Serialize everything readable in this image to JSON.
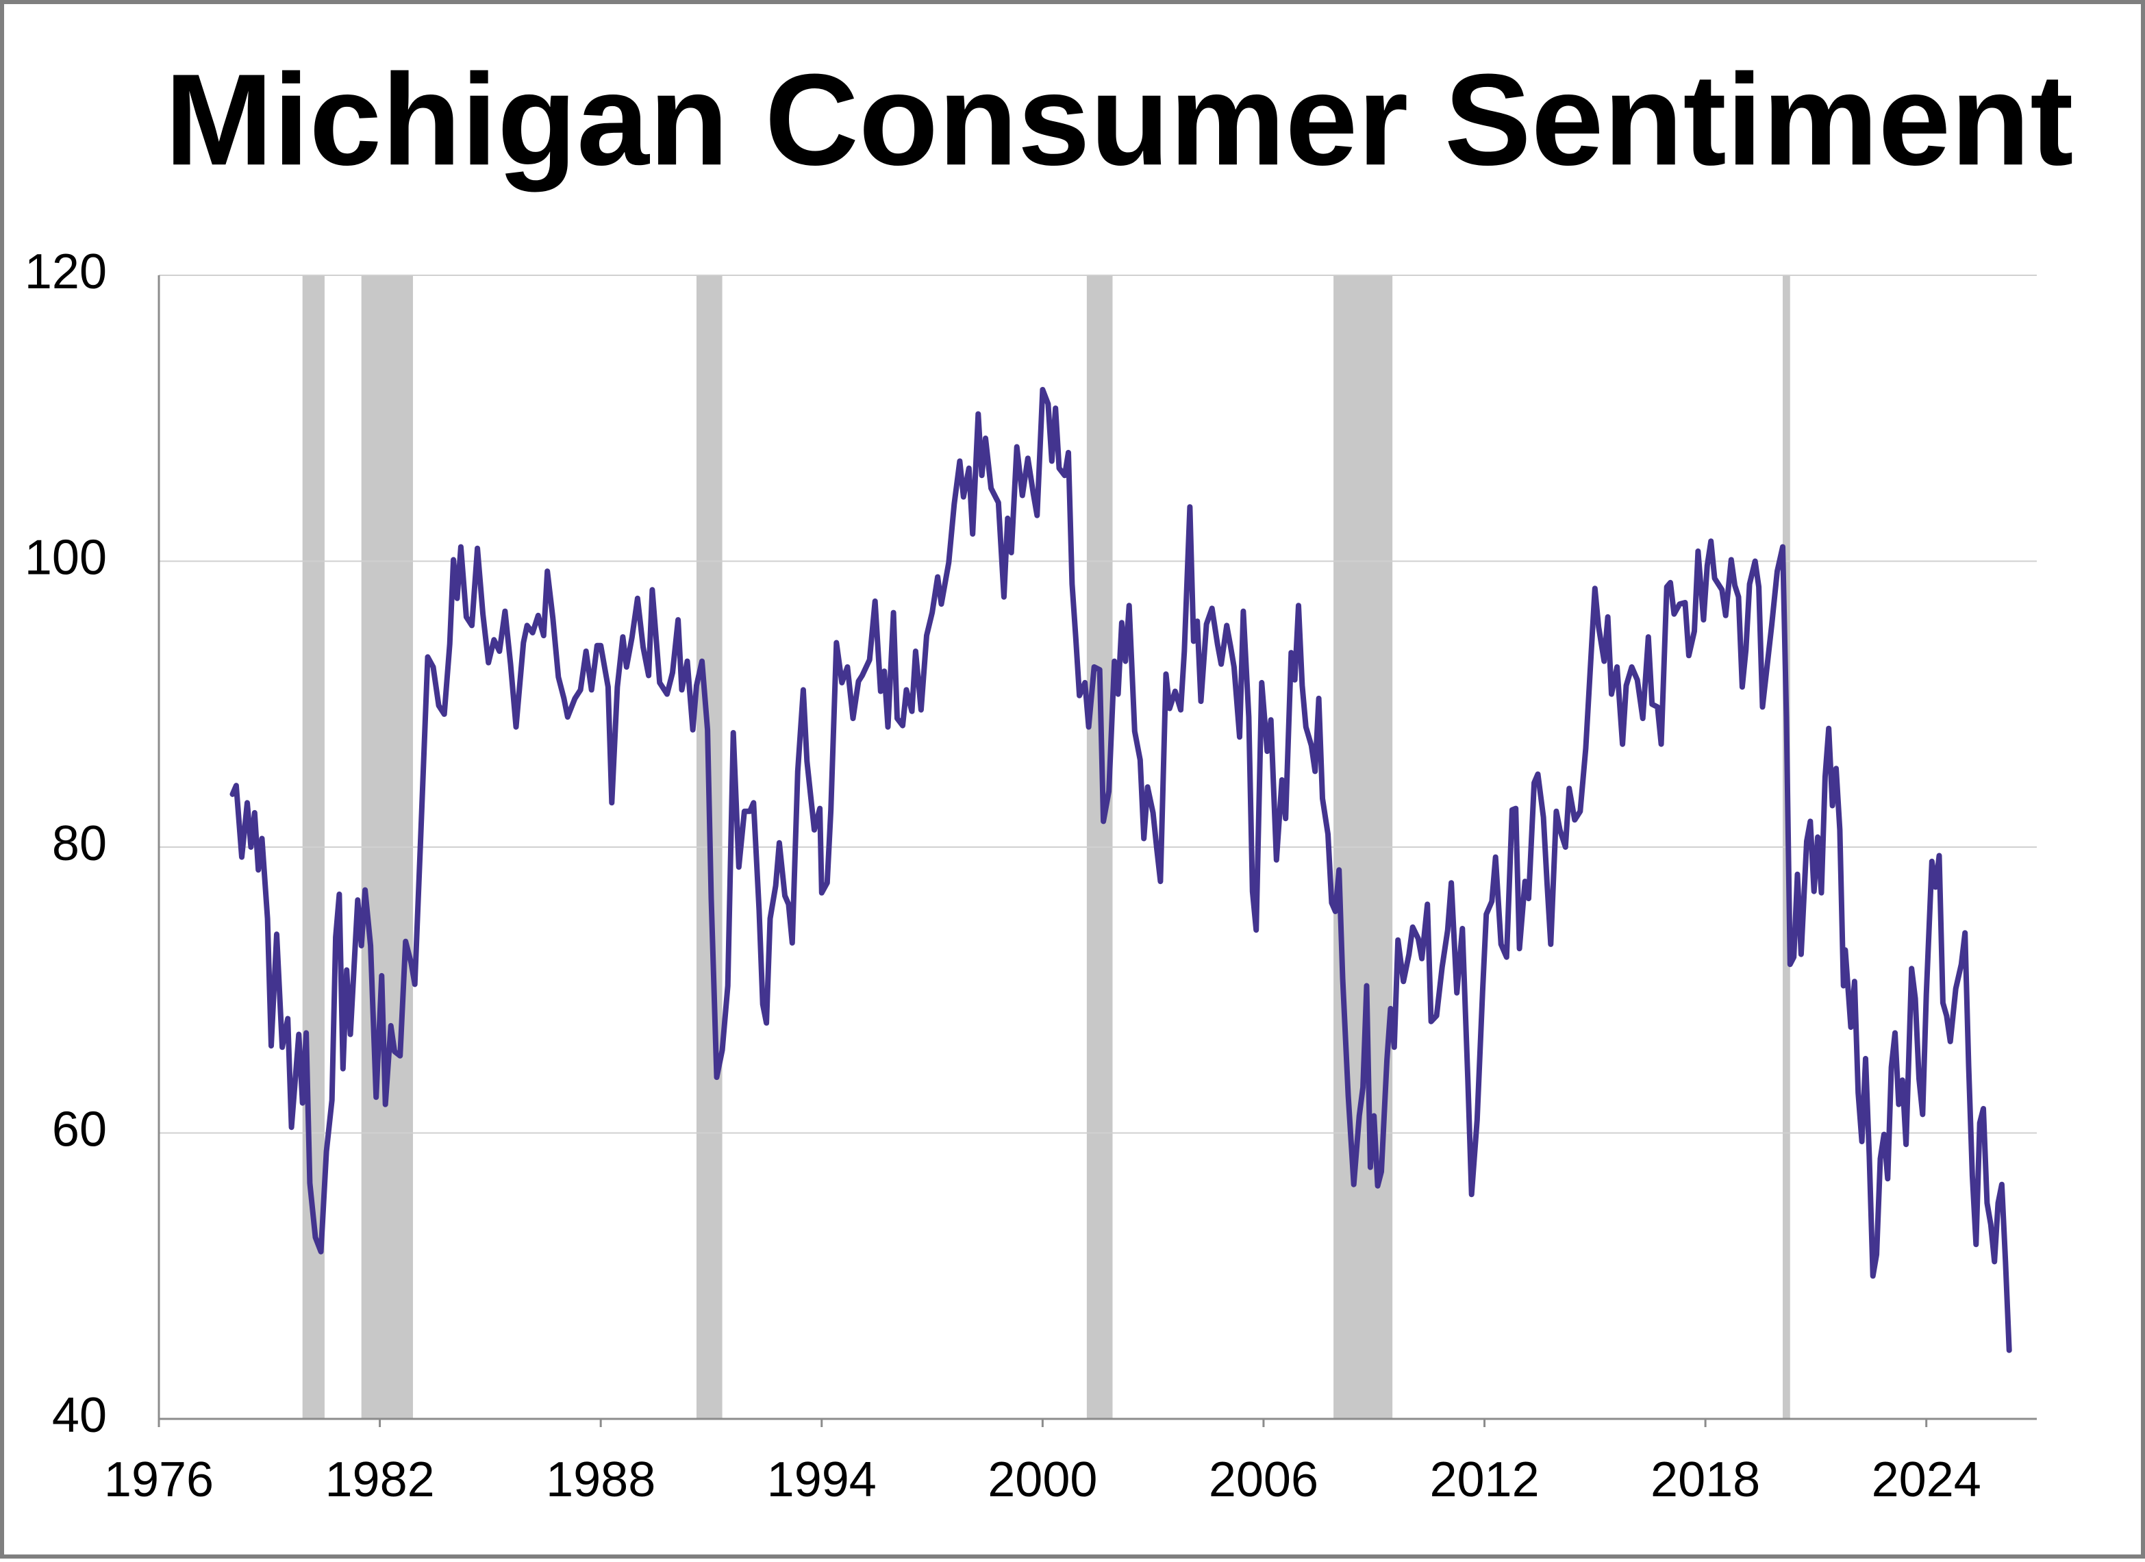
{
  "chart_data": {
    "type": "line",
    "title": "Michigan Consumer Sentiment",
    "xlim": [
      1976,
      2027
    ],
    "xticks": [
      1976,
      1982,
      1988,
      1994,
      2000,
      2006,
      2012,
      2018,
      2024
    ],
    "ylim": [
      40,
      120
    ],
    "yticks": [
      40,
      60,
      80,
      100,
      120
    ],
    "grid": true,
    "color": "#43348f",
    "shade_color": "#c8c8c8",
    "recessions": [
      [
        1979.9,
        1980.5
      ],
      [
        1981.5,
        1982.9
      ],
      [
        1990.6,
        1991.3
      ],
      [
        2001.2,
        2001.9
      ],
      [
        2007.9,
        2009.5
      ],
      [
        2020.1,
        2020.3
      ]
    ],
    "x": [
      1978.0,
      1978.1,
      1978.25,
      1978.4,
      1978.5,
      1978.6,
      1978.7,
      1978.8,
      1978.95,
      1979.05,
      1979.2,
      1979.35,
      1979.5,
      1979.6,
      1979.8,
      1979.9,
      1980.0,
      1980.1,
      1980.25,
      1980.4,
      1980.55,
      1980.7,
      1980.8,
      1980.9,
      1981.0,
      1981.1,
      1981.2,
      1981.4,
      1981.5,
      1981.6,
      1981.75,
      1981.9,
      1982.05,
      1982.15,
      1982.3,
      1982.4,
      1982.55,
      1982.7,
      1982.85,
      1982.95,
      1983.1,
      1983.3,
      1983.45,
      1983.6,
      1983.75,
      1983.9,
      1984.0,
      1984.1,
      1984.2,
      1984.35,
      1984.5,
      1984.65,
      1984.8,
      1984.95,
      1985.1,
      1985.25,
      1985.4,
      1985.55,
      1985.7,
      1985.9,
      1986.0,
      1986.15,
      1986.3,
      1986.45,
      1986.55,
      1986.7,
      1986.85,
      1987.0,
      1987.1,
      1987.3,
      1987.45,
      1987.6,
      1987.75,
      1987.9,
      1988.0,
      1988.2,
      1988.3,
      1988.45,
      1988.6,
      1988.7,
      1988.85,
      1989.0,
      1989.15,
      1989.3,
      1989.4,
      1989.6,
      1989.8,
      1989.95,
      1990.1,
      1990.2,
      1990.35,
      1990.5,
      1990.6,
      1990.75,
      1990.9,
      1991.0,
      1991.15,
      1991.3,
      1991.45,
      1991.6,
      1991.75,
      1991.9,
      1992.05,
      1992.15,
      1992.3,
      1992.4,
      1992.5,
      1992.6,
      1992.75,
      1992.85,
      1993.0,
      1993.1,
      1993.2,
      1993.35,
      1993.5,
      1993.6,
      1993.8,
      1993.95,
      1994.0,
      1994.15,
      1994.25,
      1994.4,
      1994.55,
      1994.7,
      1994.85,
      1995.0,
      1995.1,
      1995.3,
      1995.45,
      1995.6,
      1995.7,
      1995.8,
      1995.95,
      1996.05,
      1996.2,
      1996.3,
      1996.45,
      1996.55,
      1996.7,
      1996.85,
      1997.0,
      1997.15,
      1997.25,
      1997.45,
      1997.6,
      1997.75,
      1997.85,
      1998.0,
      1998.1,
      1998.25,
      1998.35,
      1998.45,
      1998.6,
      1998.8,
      1998.95,
      1999.05,
      1999.15,
      1999.3,
      1999.45,
      1999.6,
      1999.75,
      1999.85,
      2000.0,
      2000.15,
      2000.25,
      2000.35,
      2000.45,
      2000.6,
      2000.7,
      2000.8,
      2000.9,
      2001.0,
      2001.15,
      2001.25,
      2001.4,
      2001.55,
      2001.65,
      2001.8,
      2001.95,
      2002.05,
      2002.15,
      2002.25,
      2002.35,
      2002.5,
      2002.65,
      2002.75,
      2002.85,
      2003.0,
      2003.1,
      2003.2,
      2003.35,
      2003.45,
      2003.6,
      2003.75,
      2003.85,
      2004.0,
      2004.1,
      2004.2,
      2004.3,
      2004.45,
      2004.6,
      2004.75,
      2004.85,
      2005.0,
      2005.1,
      2005.2,
      2005.35,
      2005.45,
      2005.6,
      2005.7,
      2005.8,
      2005.95,
      2006.1,
      2006.2,
      2006.35,
      2006.5,
      2006.6,
      2006.75,
      2006.85,
      2006.95,
      2007.05,
      2007.15,
      2007.3,
      2007.4,
      2007.5,
      2007.6,
      2007.75,
      2007.85,
      2007.95,
      2008.05,
      2008.15,
      2008.3,
      2008.45,
      2008.6,
      2008.7,
      2008.8,
      2008.9,
      2009.0,
      2009.1,
      2009.2,
      2009.35,
      2009.45,
      2009.55,
      2009.65,
      2009.8,
      2009.95,
      2010.05,
      2010.2,
      2010.3,
      2010.45,
      2010.55,
      2010.7,
      2010.85,
      2011.0,
      2011.1,
      2011.25,
      2011.4,
      2011.55,
      2011.65,
      2011.8,
      2011.95,
      2012.05,
      2012.2,
      2012.3,
      2012.45,
      2012.6,
      2012.75,
      2012.85,
      2012.95,
      2013.1,
      2013.2,
      2013.35,
      2013.45,
      2013.6,
      2013.7,
      2013.8,
      2013.95,
      2014.05,
      2014.2,
      2014.3,
      2014.45,
      2014.6,
      2014.75,
      2014.9,
      2015.0,
      2015.1,
      2015.25,
      2015.35,
      2015.45,
      2015.6,
      2015.75,
      2015.85,
      2016.0,
      2016.15,
      2016.3,
      2016.45,
      2016.55,
      2016.7,
      2016.8,
      2016.95,
      2017.05,
      2017.15,
      2017.3,
      2017.45,
      2017.55,
      2017.7,
      2017.8,
      2017.95,
      2018.05,
      2018.15,
      2018.25,
      2018.45,
      2018.55,
      2018.7,
      2018.8,
      2018.9,
      2019.0,
      2019.1,
      2019.2,
      2019.35,
      2019.45,
      2019.55,
      2019.7,
      2019.8,
      2019.95,
      2020.1,
      2020.2,
      2020.3,
      2020.4,
      2020.5,
      2020.6,
      2020.75,
      2020.85,
      2020.95,
      2021.05,
      2021.15,
      2021.25,
      2021.35,
      2021.45,
      2021.55,
      2021.65,
      2021.75,
      2021.8,
      2021.95,
      2022.05,
      2022.15,
      2022.25,
      2022.35,
      2022.45,
      2022.55,
      2022.65,
      2022.75,
      2022.85,
      2022.95,
      2023.05,
      2023.15,
      2023.25,
      2023.35,
      2023.45,
      2023.6,
      2023.7,
      2023.8,
      2023.9,
      2024.0,
      2024.15,
      2024.25,
      2024.35,
      2024.45,
      2024.55,
      2024.65,
      2024.8,
      2024.95,
      2025.05,
      2025.15,
      2025.25,
      2025.35,
      2025.45,
      2025.55,
      2025.65,
      2025.75,
      2025.85,
      2025.95,
      2026.05,
      2026.15,
      2026.25
    ],
    "values": [
      83.7,
      84.3,
      79.3,
      83.1,
      80.0,
      82.4,
      78.4,
      80.6,
      75.0,
      66.1,
      73.9,
      66.0,
      68.0,
      60.4,
      66.9,
      62.1,
      67.0,
      56.5,
      52.7,
      51.7,
      58.7,
      62.3,
      73.7,
      76.7,
      64.5,
      71.4,
      66.9,
      76.3,
      73.1,
      77.0,
      73.1,
      62.5,
      71.0,
      62.0,
      67.5,
      65.7,
      65.4,
      73.4,
      71.9,
      70.4,
      80.0,
      93.3,
      92.6,
      89.9,
      89.3,
      94.2,
      100.1,
      97.4,
      101.0,
      96.1,
      95.5,
      100.9,
      96.3,
      92.9,
      94.5,
      93.7,
      96.5,
      92.8,
      88.4,
      94.3,
      95.5,
      95.0,
      96.2,
      94.8,
      99.3,
      96.0,
      91.9,
      90.4,
      89.1,
      90.4,
      91.0,
      93.7,
      91.0,
      94.1,
      94.1,
      91.2,
      83.1,
      91.2,
      94.7,
      92.6,
      94.7,
      97.4,
      94.0,
      92.0,
      98.0,
      91.5,
      90.7,
      92.2,
      95.9,
      91.0,
      93.0,
      88.2,
      91.3,
      93.0,
      88.2,
      76.4,
      63.9,
      65.8,
      70.3,
      88.0,
      78.6,
      82.5,
      82.5,
      83.1,
      75.6,
      69.0,
      67.7,
      75.0,
      77.3,
      80.3,
      76.6,
      76.0,
      73.3,
      85.3,
      91.0,
      86.0,
      81.2,
      82.7,
      76.8,
      77.5,
      82.6,
      94.3,
      91.5,
      92.6,
      89.0,
      91.6,
      92.0,
      93.1,
      97.2,
      90.9,
      92.3,
      88.4,
      96.4,
      89.0,
      88.5,
      91.0,
      89.5,
      93.7,
      89.6,
      94.8,
      96.4,
      98.9,
      97.0,
      99.9,
      104.0,
      107.0,
      104.5,
      106.5,
      101.9,
      110.3,
      106.0,
      108.6,
      105.1,
      104.1,
      97.5,
      103.0,
      100.6,
      108.0,
      104.6,
      107.2,
      104.7,
      103.2,
      112.0,
      111.0,
      107.0,
      110.7,
      106.5,
      106.0,
      107.6,
      98.4,
      94.7,
      90.6,
      91.5,
      88.4,
      92.6,
      92.4,
      81.8,
      83.9,
      93.0,
      90.7,
      95.7,
      93.0,
      96.9,
      88.1,
      86.1,
      80.6,
      84.2,
      82.4,
      79.9,
      77.6,
      92.1,
      89.7,
      90.9,
      89.6,
      93.7,
      103.8,
      94.4,
      95.8,
      90.2,
      95.6,
      96.7,
      94.2,
      92.8,
      95.5,
      94.1,
      92.6,
      87.7,
      96.5,
      89.1,
      76.9,
      74.2,
      91.5,
      86.7,
      88.9,
      79.1,
      84.7,
      82.0,
      93.6,
      91.7,
      96.9,
      91.3,
      88.4,
      87.1,
      85.3,
      90.4,
      83.4,
      80.9,
      76.1,
      75.5,
      78.4,
      70.8,
      62.6,
      56.4,
      61.2,
      63.2,
      70.3,
      57.6,
      61.2,
      56.3,
      57.3,
      65.1,
      68.7,
      66.0,
      73.5,
      70.6,
      72.5,
      74.4,
      73.6,
      72.2,
      76.0,
      67.8,
      68.2,
      71.6,
      74.2,
      77.5,
      69.8,
      74.3,
      63.7,
      55.7,
      60.9,
      69.9,
      75.3,
      76.2,
      79.3,
      73.2,
      72.3,
      82.6,
      82.7,
      72.9,
      77.6,
      76.4,
      84.5,
      85.1,
      82.1,
      77.5,
      73.2,
      82.5,
      81.2,
      80.0,
      84.1,
      81.9,
      82.5,
      86.9,
      93.6,
      98.1,
      95.4,
      93.0,
      96.1,
      90.7,
      92.6,
      87.2,
      91.3,
      92.6,
      91.7,
      89.0,
      94.7,
      90.0,
      89.8,
      87.2,
      98.2,
      98.5,
      96.3,
      97.0,
      97.1,
      93.4,
      95.1,
      100.7,
      95.9,
      99.7,
      101.4,
      98.8,
      98.0,
      96.2,
      100.1,
      98.3,
      97.5,
      91.2,
      93.8,
      98.4,
      100.0,
      98.2,
      89.8,
      93.2,
      95.5,
      99.3,
      101.0,
      89.1,
      71.8,
      72.3,
      78.1,
      72.5,
      80.4,
      81.8,
      76.9,
      80.7,
      76.8,
      84.9,
      88.3,
      82.9,
      85.5,
      81.2,
      70.3,
      72.8,
      67.4,
      70.6,
      62.8,
      59.4,
      65.2,
      58.4,
      50.0,
      51.5,
      58.2,
      59.9,
      56.8,
      64.6,
      67.0,
      62.0,
      63.7,
      59.2,
      71.5,
      69.4,
      63.8,
      61.3,
      69.7,
      79.0,
      77.2,
      79.4,
      69.1,
      68.2,
      66.4,
      70.1,
      71.8,
      74.0,
      64.7,
      57.0,
      52.2,
      60.7,
      61.7,
      55.1,
      53.6,
      51.0,
      55.1,
      56.4,
      51.0,
      44.8
    ]
  }
}
